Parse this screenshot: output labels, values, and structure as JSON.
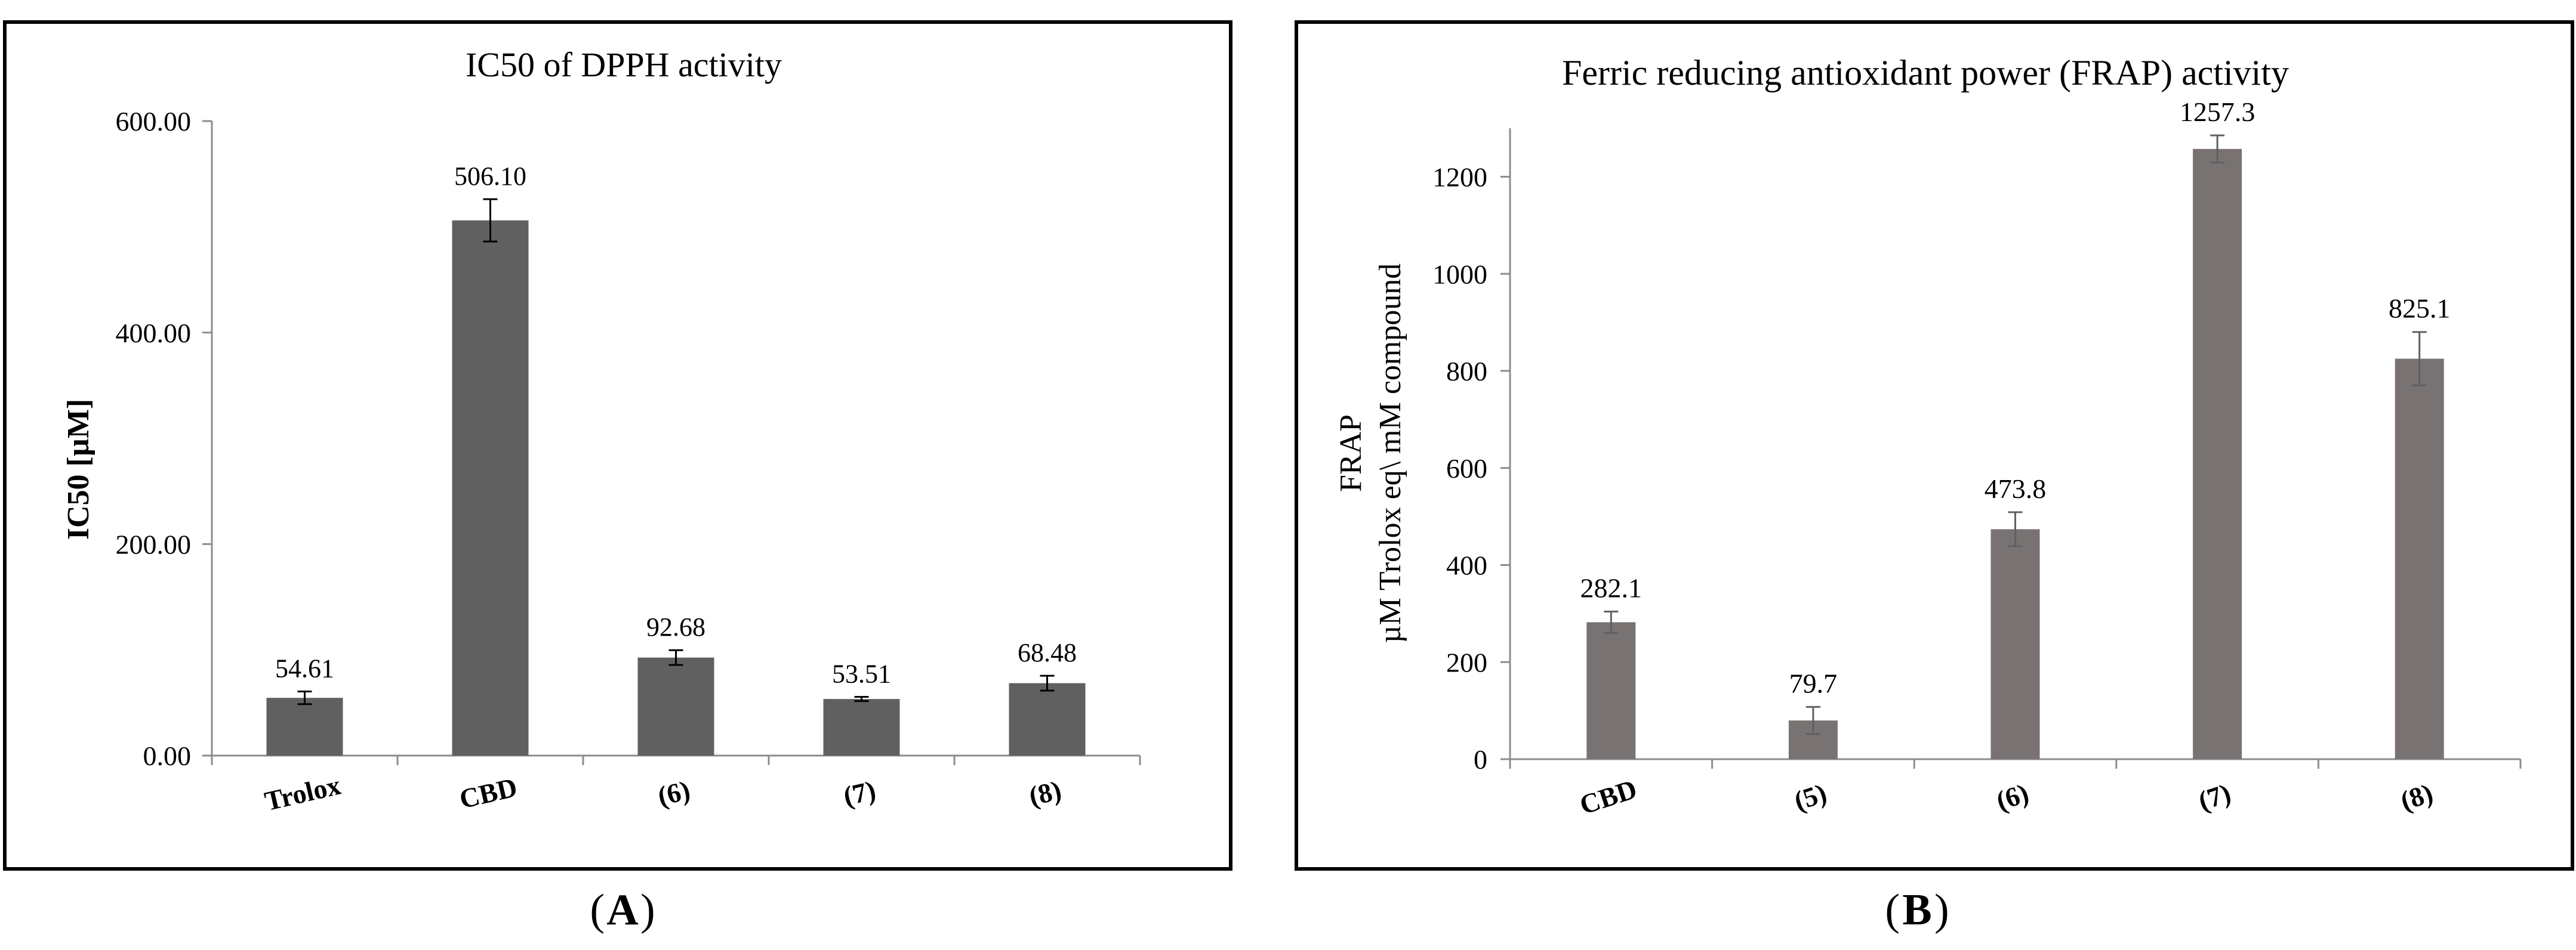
{
  "chart_data": [
    {
      "type": "bar",
      "panel_label": "A",
      "title": "IC50 of DPPH activity",
      "xlabel": "",
      "ylabel": "IC50 [µM]",
      "categories": [
        "Trolox",
        "CBD",
        "(6)",
        "(7)",
        "(8)"
      ],
      "values": [
        54.61,
        506.1,
        92.68,
        53.51,
        68.48
      ],
      "data_labels": [
        "54.61",
        "506.10",
        "92.68",
        "53.51",
        "68.48"
      ],
      "error": [
        6,
        20,
        7,
        2,
        7
      ],
      "ylim": [
        0,
        600
      ],
      "yticks": [
        0,
        200,
        400,
        600
      ],
      "ytick_labels": [
        "0.00",
        "200.00",
        "400.00",
        "600.00"
      ],
      "bar_color": "#606060",
      "grid": false,
      "legend": "none"
    },
    {
      "type": "bar",
      "panel_label": "B",
      "title": "Ferric reducing antioxidant power (FRAP) activity",
      "xlabel": "",
      "ylabel": [
        "FRAP",
        "µM Trolox eq\\ mM compound"
      ],
      "categories": [
        "CBD",
        "(5)",
        "(6)",
        "(7)",
        "(8)"
      ],
      "values": [
        282.1,
        79.7,
        473.8,
        1257.3,
        825.1
      ],
      "data_labels": [
        "282.1",
        "79.7",
        "473.8",
        "1257.3",
        "825.1"
      ],
      "error": [
        22,
        28,
        35,
        28,
        55
      ],
      "ylim": [
        0,
        1300
      ],
      "yticks": [
        0,
        200,
        400,
        600,
        800,
        1000,
        1200
      ],
      "ytick_labels": [
        "0",
        "200",
        "400",
        "600",
        "800",
        "1000",
        "1200"
      ],
      "bar_color": "#787272",
      "grid": false,
      "legend": "none"
    }
  ]
}
